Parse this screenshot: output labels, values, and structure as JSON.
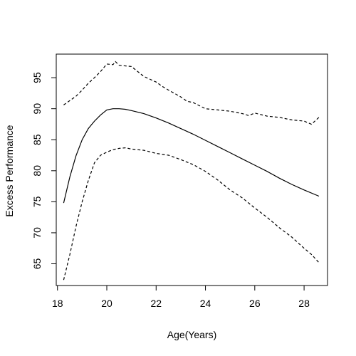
{
  "chart_data": {
    "type": "line",
    "title": "",
    "xlabel": "Age(Years)",
    "ylabel": "Excess Performance",
    "xlim": [
      17.95,
      28.95
    ],
    "ylim": [
      61.5,
      98.8
    ],
    "x_ticks": [
      18,
      20,
      22,
      24,
      26,
      28
    ],
    "y_ticks": [
      65,
      70,
      75,
      80,
      85,
      90,
      95
    ],
    "grid": false,
    "legend": "none",
    "series": [
      {
        "style": "solid",
        "color": "#000000",
        "points": [
          [
            18.25,
            74.8
          ],
          [
            18.5,
            79.0
          ],
          [
            18.75,
            82.4
          ],
          [
            19.0,
            85.0
          ],
          [
            19.25,
            86.8
          ],
          [
            19.5,
            88.0
          ],
          [
            19.75,
            89.0
          ],
          [
            20.0,
            89.8
          ],
          [
            20.25,
            90.0
          ],
          [
            20.5,
            90.0
          ],
          [
            20.75,
            89.9
          ],
          [
            21.0,
            89.7
          ],
          [
            21.5,
            89.2
          ],
          [
            22.0,
            88.5
          ],
          [
            22.5,
            87.7
          ],
          [
            23.0,
            86.8
          ],
          [
            23.5,
            85.9
          ],
          [
            24.0,
            84.9
          ],
          [
            24.5,
            83.9
          ],
          [
            25.0,
            82.9
          ],
          [
            25.5,
            81.9
          ],
          [
            26.0,
            80.9
          ],
          [
            26.5,
            79.9
          ],
          [
            27.0,
            78.8
          ],
          [
            27.5,
            77.8
          ],
          [
            28.0,
            76.9
          ],
          [
            28.6,
            75.9
          ]
        ]
      },
      {
        "style": "dashed",
        "color": "#000000",
        "points": [
          [
            18.25,
            90.6
          ],
          [
            18.5,
            91.3
          ],
          [
            18.75,
            92.0
          ],
          [
            19.0,
            93.0
          ],
          [
            19.25,
            94.1
          ],
          [
            19.5,
            95.0
          ],
          [
            19.75,
            96.0
          ],
          [
            20.0,
            97.2
          ],
          [
            20.25,
            97.1
          ],
          [
            20.35,
            97.6
          ],
          [
            20.5,
            97.0
          ],
          [
            21.0,
            96.8
          ],
          [
            21.25,
            96.0
          ],
          [
            21.5,
            95.2
          ],
          [
            22.0,
            94.3
          ],
          [
            22.25,
            93.6
          ],
          [
            22.5,
            93.0
          ],
          [
            23.0,
            91.9
          ],
          [
            23.25,
            91.2
          ],
          [
            23.5,
            91.0
          ],
          [
            24.0,
            90.0
          ],
          [
            24.5,
            89.8
          ],
          [
            25.0,
            89.6
          ],
          [
            25.5,
            89.2
          ],
          [
            25.75,
            88.9
          ],
          [
            26.0,
            89.3
          ],
          [
            26.5,
            88.8
          ],
          [
            27.0,
            88.6
          ],
          [
            27.5,
            88.2
          ],
          [
            28.0,
            88.0
          ],
          [
            28.3,
            87.5
          ],
          [
            28.6,
            88.6
          ]
        ]
      },
      {
        "style": "dashed",
        "color": "#000000",
        "points": [
          [
            18.25,
            62.4
          ],
          [
            18.5,
            66.5
          ],
          [
            18.75,
            71.0
          ],
          [
            19.0,
            75.0
          ],
          [
            19.25,
            78.4
          ],
          [
            19.5,
            81.3
          ],
          [
            19.75,
            82.5
          ],
          [
            20.0,
            83.0
          ],
          [
            20.25,
            83.4
          ],
          [
            20.5,
            83.6
          ],
          [
            20.75,
            83.7
          ],
          [
            21.0,
            83.5
          ],
          [
            21.5,
            83.3
          ],
          [
            22.0,
            82.8
          ],
          [
            22.5,
            82.5
          ],
          [
            23.0,
            81.8
          ],
          [
            23.5,
            81.0
          ],
          [
            24.0,
            79.9
          ],
          [
            24.5,
            78.5
          ],
          [
            25.0,
            76.9
          ],
          [
            25.5,
            75.6
          ],
          [
            26.0,
            74.0
          ],
          [
            26.5,
            72.5
          ],
          [
            27.0,
            70.8
          ],
          [
            27.5,
            69.3
          ],
          [
            28.0,
            67.5
          ],
          [
            28.3,
            66.5
          ],
          [
            28.6,
            65.2
          ]
        ]
      }
    ]
  }
}
